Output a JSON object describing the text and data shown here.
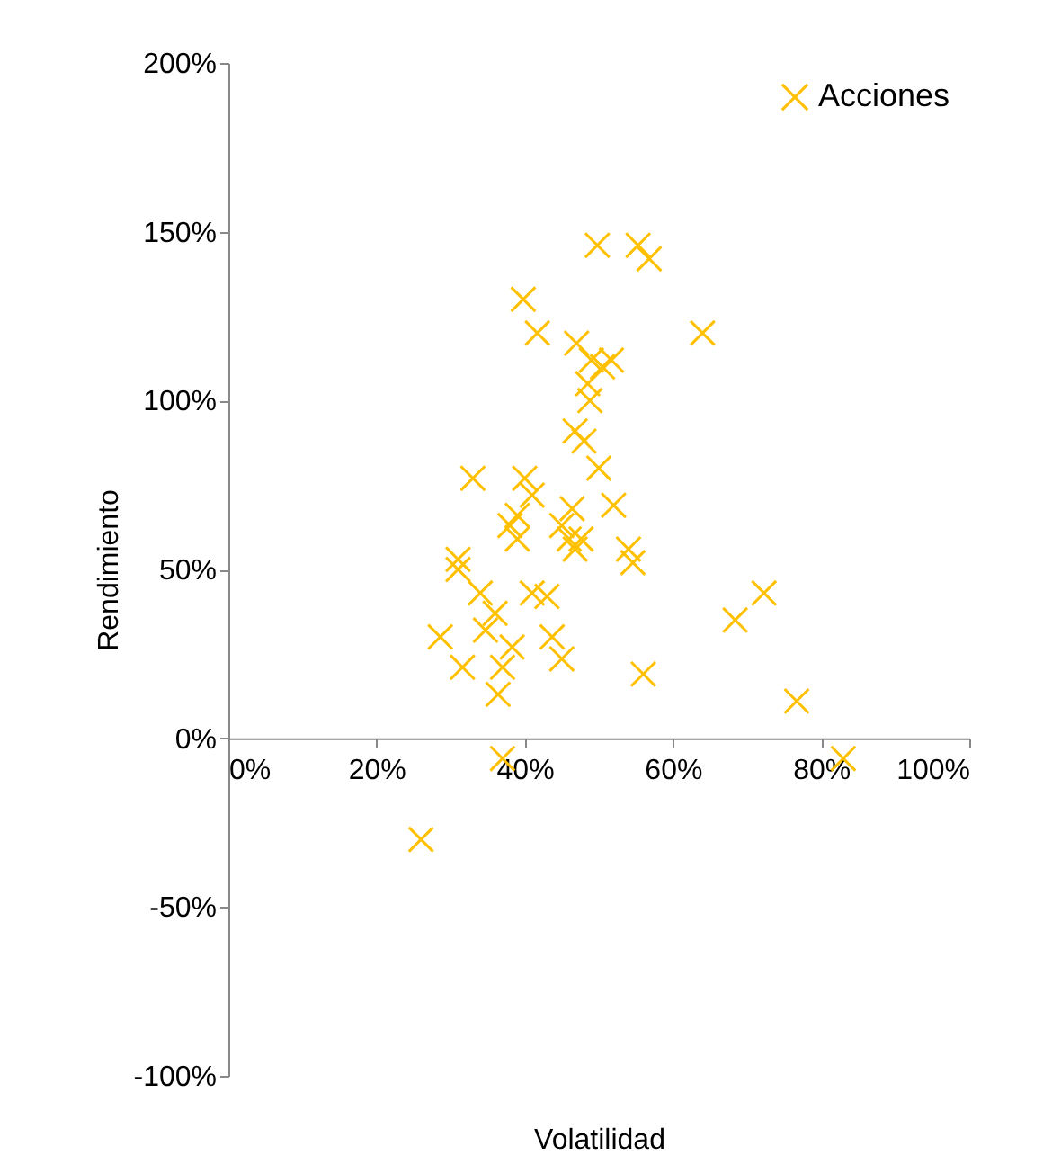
{
  "chart_data": {
    "type": "scatter",
    "xlabel": "Volatilidad",
    "ylabel": "Rendimiento",
    "series": [
      {
        "name": "Acciones",
        "color": "#ffc000",
        "x": [
          49.8,
          55.3,
          56.8,
          39.8,
          41.7,
          64,
          47,
          49,
          51.7,
          50.5,
          48.5,
          48.8,
          46.8,
          48,
          50,
          33,
          40,
          41,
          39,
          38,
          46.4,
          52,
          45,
          47.6,
          54,
          31,
          31,
          39,
          46,
          46.8,
          54.6,
          34,
          41,
          43,
          36,
          28.6,
          34.7,
          38.3,
          43.7,
          31.6,
          37,
          45,
          36.4,
          56,
          68.4,
          72.3,
          76.7,
          83,
          37,
          26
        ],
        "values": [
          146,
          146,
          142,
          130,
          120,
          120,
          117,
          112,
          112,
          110,
          105,
          100,
          91,
          88,
          80,
          77,
          77,
          72,
          66,
          63,
          68,
          69,
          63,
          59,
          56,
          53,
          50,
          59,
          59,
          56,
          52,
          43,
          43,
          42,
          37,
          30,
          32,
          27,
          30,
          21,
          21,
          23.5,
          13,
          19,
          35,
          43,
          11,
          -6,
          -6,
          -30
        ]
      }
    ],
    "xlim": [
      0,
      100
    ],
    "ylim": [
      -100,
      200
    ],
    "xticks": [
      {
        "value": 0,
        "label": "0%"
      },
      {
        "value": 20,
        "label": "20%"
      },
      {
        "value": 40,
        "label": "40%"
      },
      {
        "value": 60,
        "label": "60%"
      },
      {
        "value": 80,
        "label": "80%"
      },
      {
        "value": 100,
        "label": "100%"
      }
    ],
    "yticks": [
      {
        "value": -100,
        "label": "-100%"
      },
      {
        "value": -50,
        "label": "-50%"
      },
      {
        "value": 0,
        "label": "0%"
      },
      {
        "value": 50,
        "label": "50%"
      },
      {
        "value": 100,
        "label": "100%"
      },
      {
        "value": 150,
        "label": "150%"
      },
      {
        "value": 200,
        "label": "200%"
      }
    ],
    "marker": "cross",
    "legend": "top right",
    "grid": false
  }
}
